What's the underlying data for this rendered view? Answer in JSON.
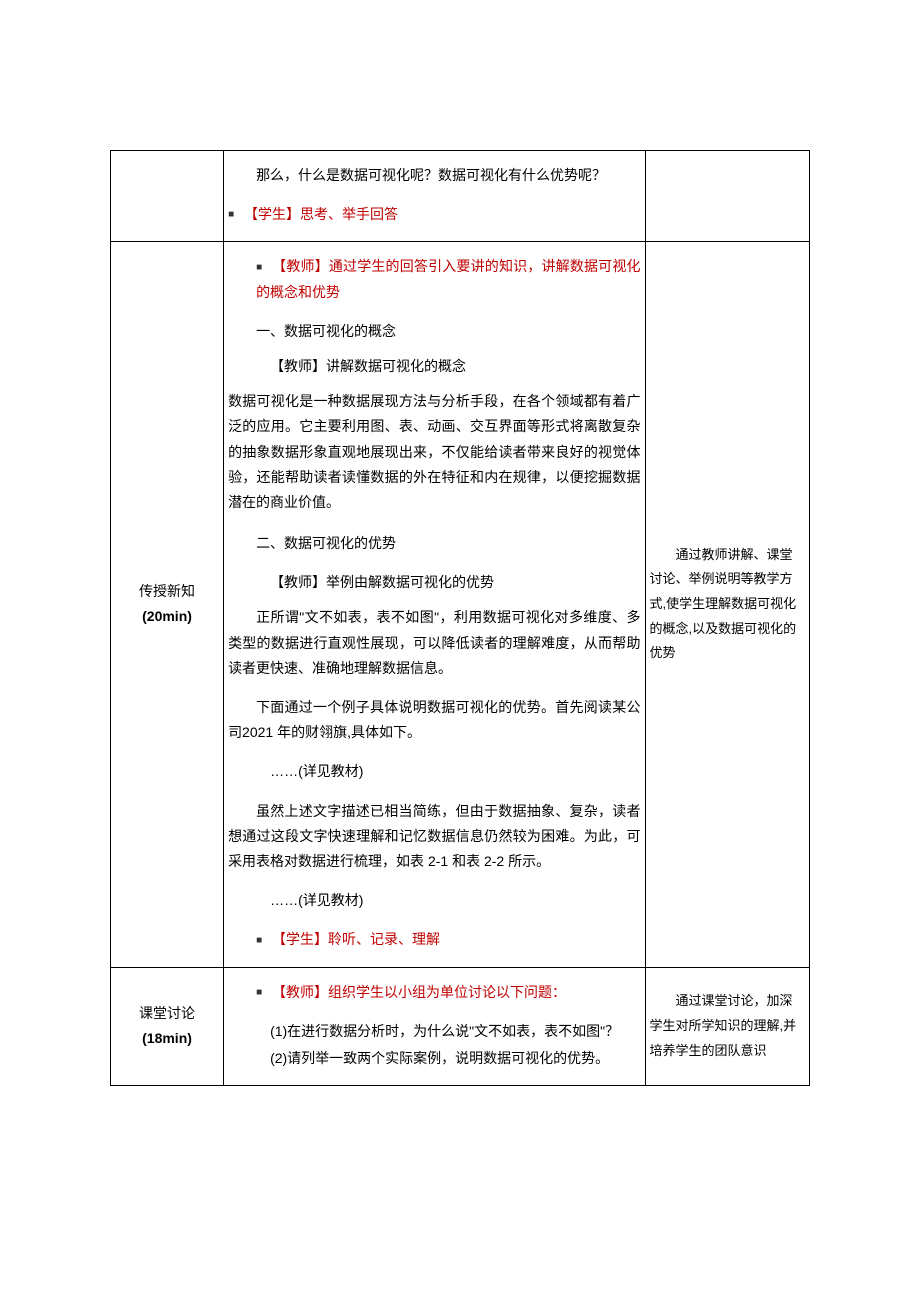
{
  "row1": {
    "content": {
      "q": "那么，什么是数据可视化呢？数据可视化有什么优势呢？",
      "student": "【学生】思考、举手回答"
    }
  },
  "row2": {
    "label_line1": "传授新知",
    "label_line2": "(20min)",
    "content": {
      "teacher_intro": "【教师】通过学生的回答引入要讲的知识，讲解数据可视化的概念和优势",
      "h1": "一、数据可视化的概念",
      "t1": "【教师】讲解数据可视化的概念",
      "p1": "数据可视化是一种数据展现方法与分析手段，在各个领域都有着广泛的应用。它主要利用图、表、动画、交互界面等形式将离散复杂的抽象数据形象直观地展现出来，不仅能给读者带来良好的视觉体验，还能帮助读者读懂数据的外在特征和内在规律，以便挖掘数据潜在的商业价值。",
      "h2": "二、数据可视化的优势",
      "t2": "【教师】举例由解数据可视化的优势",
      "p2": "正所谓\"文不如表，表不如图\"，利用数据可视化对多维度、多类型的数据进行直观性展现，可以降低读者的理解难度，从而帮助读者更快速、准确地理解数据信息。",
      "p3": "下面通过一个例子具体说明数据可视化的优势。首先阅读某公司2021 年的财翎旗,具体如下。",
      "p4": "……(详见教材)",
      "p5": "虽然上述文字描述已相当简练，但由于数据抽象、复杂，读者想通过这段文字快速理解和记忆数据信息仍然较为困难。为此，可采用表格对数据进行梳理，如表 2-1 和表 2-2 所示。",
      "p6": "……(详见教材)",
      "student": "【学生】聆听、记录、理解"
    },
    "note": "　　通过教师讲解、课堂讨论、举例说明等教学方式,使学生理解数据可视化的概念,以及数据可视化的优势"
  },
  "row3": {
    "label_line1": "课堂讨论",
    "label_line2": "(18min)",
    "content": {
      "teacher": "【教师】组织学生以小组为单位讨论以下问题：",
      "q1": "(1)在进行数据分析时，为什么说\"文不如表，表不如图\"？",
      "q2": "(2)请列举一致两个实际案例，说明数据可视化的优势。"
    },
    "note": "　　通过课堂讨论，加深学生对所学知识的理解,并培养学生的团队意识"
  }
}
